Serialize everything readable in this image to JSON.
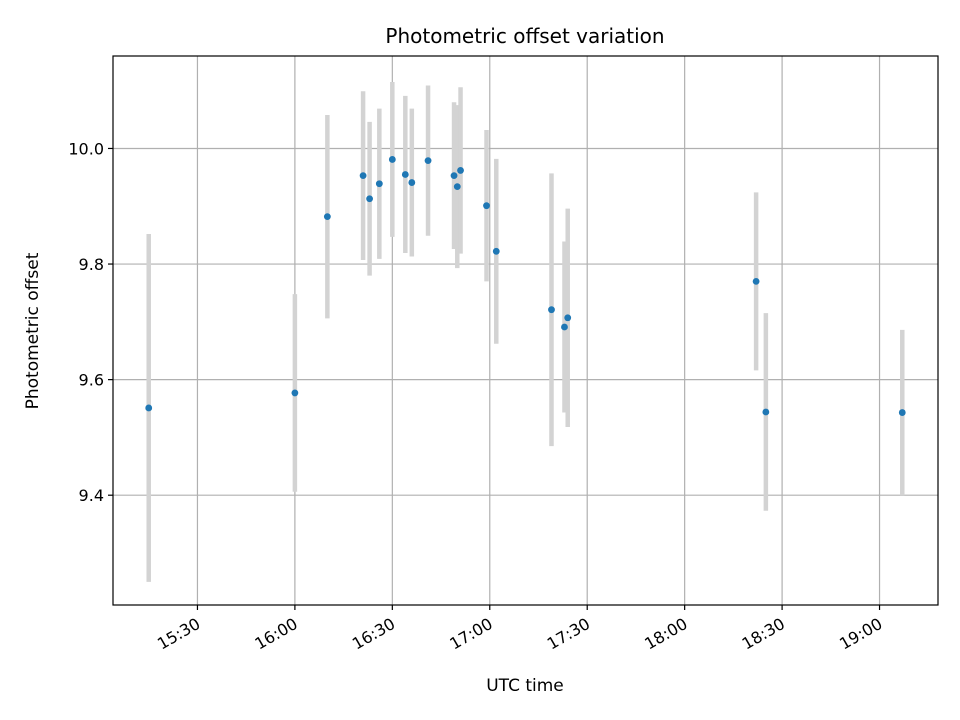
{
  "chart_data": {
    "type": "scatter",
    "title": "Photometric offset variation",
    "xlabel": "UTC time",
    "ylabel": "Photometric offset",
    "xlim": [
      "15:04",
      "19:18"
    ],
    "ylim": [
      9.21,
      10.16
    ],
    "grid": true,
    "x_tick_labels": [
      "15:30",
      "16:00",
      "16:30",
      "17:00",
      "17:30",
      "18:00",
      "18:30",
      "19:00"
    ],
    "y_tick_labels": [
      "9.4",
      "9.6",
      "9.8",
      "10.0"
    ],
    "y_ticks": [
      9.4,
      9.6,
      9.8,
      10.0
    ],
    "colors": {
      "points": "#1f77b4",
      "error_bars": "#d3d3d3",
      "grid": "#b0b0b0"
    },
    "series": [
      {
        "points": [
          {
            "x": "15:15",
            "y": 9.551,
            "err": 0.301
          },
          {
            "x": "16:00",
            "y": 9.577,
            "err": 0.171
          },
          {
            "x": "16:10",
            "y": 9.882,
            "err": 0.176
          },
          {
            "x": "16:21",
            "y": 9.953,
            "err": 0.146
          },
          {
            "x": "16:23",
            "y": 9.913,
            "err": 0.133
          },
          {
            "x": "16:26",
            "y": 9.939,
            "err": 0.13
          },
          {
            "x": "16:30",
            "y": 9.981,
            "err": 0.134
          },
          {
            "x": "16:34",
            "y": 9.955,
            "err": 0.136
          },
          {
            "x": "16:36",
            "y": 9.941,
            "err": 0.128
          },
          {
            "x": "16:41",
            "y": 9.979,
            "err": 0.13
          },
          {
            "x": "16:49",
            "y": 9.953,
            "err": 0.127
          },
          {
            "x": "16:50",
            "y": 9.934,
            "err": 0.141
          },
          {
            "x": "16:51",
            "y": 9.962,
            "err": 0.144
          },
          {
            "x": "16:59",
            "y": 9.901,
            "err": 0.131
          },
          {
            "x": "17:02",
            "y": 9.822,
            "err": 0.16
          },
          {
            "x": "17:19",
            "y": 9.721,
            "err": 0.236
          },
          {
            "x": "17:23",
            "y": 9.691,
            "err": 0.148
          },
          {
            "x": "17:24",
            "y": 9.707,
            "err": 0.189
          },
          {
            "x": "18:22",
            "y": 9.77,
            "err": 0.154
          },
          {
            "x": "18:25",
            "y": 9.544,
            "err": 0.171
          },
          {
            "x": "19:07",
            "y": 9.543,
            "err": 0.143
          }
        ]
      }
    ]
  }
}
